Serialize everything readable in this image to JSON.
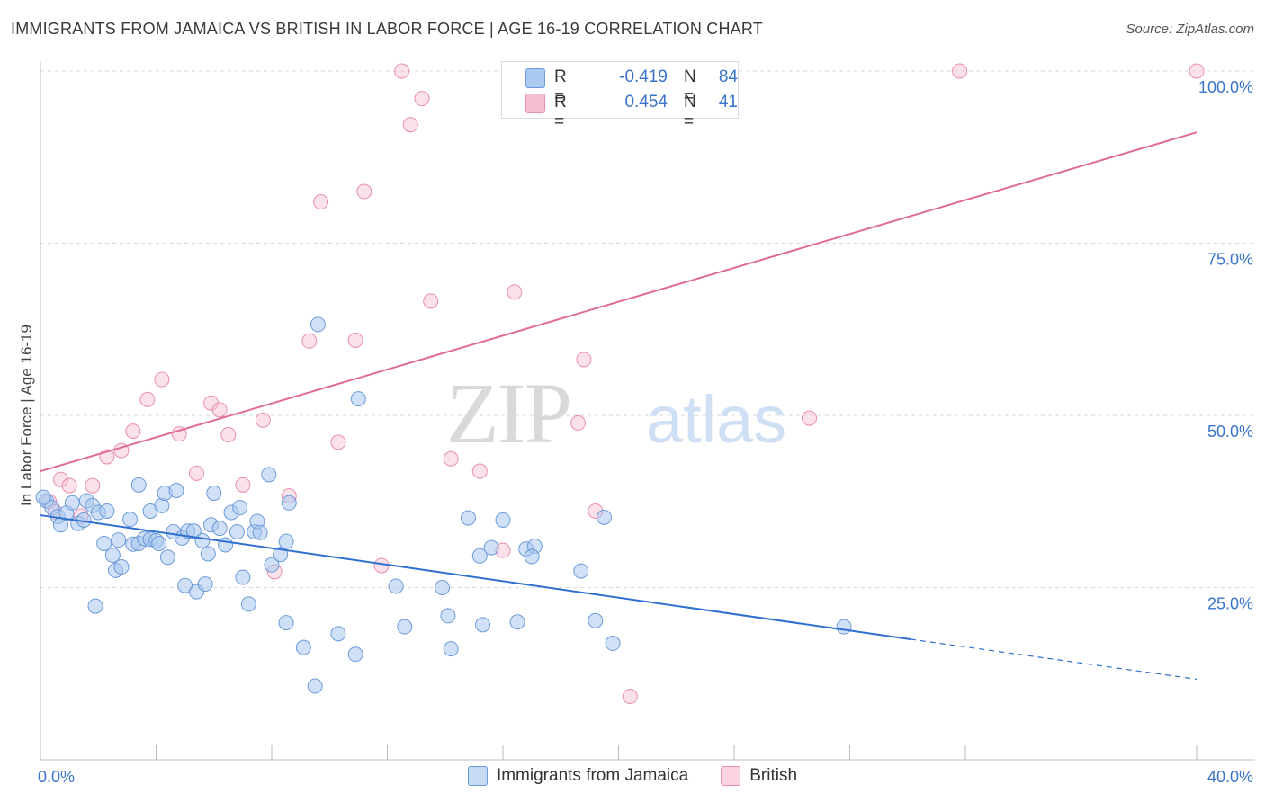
{
  "title": "IMMIGRANTS FROM JAMAICA VS BRITISH IN LABOR FORCE | AGE 16-19 CORRELATION CHART",
  "source": "Source: ZipAtlas.com",
  "watermark": {
    "zip": "ZIP",
    "atlas": "atlas"
  },
  "legend_stats": {
    "jamaica": {
      "r_label": "R =",
      "r_value": "-0.419",
      "n_label": "N =",
      "n_value": "84"
    },
    "british": {
      "r_label": "R =",
      "r_value": "0.454",
      "n_label": "N =",
      "n_value": "41"
    }
  },
  "legend_bottom": {
    "jamaica": "Immigrants from Jamaica",
    "british": "British"
  },
  "colors": {
    "jamaica_fill": "#a9c9f0",
    "jamaica_stroke": "#6c9ad8",
    "jamaica_line": "#2f6fd0",
    "british_fill": "#f6bfd0",
    "british_stroke": "#e98eab",
    "british_line": "#e06b93",
    "tick_label": "#3a74c9",
    "grid": "#d8d8d8"
  },
  "chart_data": {
    "type": "scatter",
    "title": "IMMIGRANTS FROM JAMAICA VS BRITISH IN LABOR FORCE | AGE 16-19 CORRELATION CHART",
    "xlabel": "",
    "ylabel": "In Labor Force | Age 16-19",
    "xlim": [
      0,
      40
    ],
    "ylim": [
      0,
      102
    ],
    "x_tick_labels": [
      "0.0%",
      "40.0%"
    ],
    "y_ticks": [
      25,
      50,
      75,
      100
    ],
    "y_tick_labels": [
      "25.0%",
      "50.0%",
      "75.0%",
      "100.0%"
    ],
    "grid": true,
    "series": [
      {
        "name": "Immigrants from Jamaica",
        "r": -0.419,
        "n": 84,
        "trend": {
          "x0": 0,
          "y0": 35.5,
          "x1": 30.1,
          "y1": 17.5,
          "dash_to_x": 40,
          "dash_to_y": 11.7
        },
        "points": [
          [
            0.2,
            37.6
          ],
          [
            0.4,
            36.6
          ],
          [
            0.6,
            35.3
          ],
          [
            0.7,
            34.1
          ],
          [
            0.9,
            35.8
          ],
          [
            1.1,
            37.3
          ],
          [
            1.3,
            34.3
          ],
          [
            1.5,
            34.8
          ],
          [
            1.6,
            37.6
          ],
          [
            1.8,
            36.9
          ],
          [
            1.9,
            22.3
          ],
          [
            2.0,
            35.9
          ],
          [
            2.3,
            36.1
          ],
          [
            2.2,
            31.4
          ],
          [
            2.5,
            29.7
          ],
          [
            2.6,
            27.5
          ],
          [
            2.7,
            31.9
          ],
          [
            2.8,
            28.0
          ],
          [
            3.1,
            34.9
          ],
          [
            3.2,
            31.3
          ],
          [
            3.4,
            31.4
          ],
          [
            3.4,
            39.9
          ],
          [
            3.6,
            32.1
          ],
          [
            3.8,
            32.0
          ],
          [
            3.8,
            36.1
          ],
          [
            4.0,
            31.8
          ],
          [
            4.1,
            31.4
          ],
          [
            4.2,
            36.9
          ],
          [
            4.3,
            38.7
          ],
          [
            4.4,
            29.4
          ],
          [
            4.6,
            33.1
          ],
          [
            4.7,
            39.1
          ],
          [
            4.9,
            32.2
          ],
          [
            5.0,
            25.3
          ],
          [
            5.1,
            33.2
          ],
          [
            5.3,
            33.2
          ],
          [
            5.4,
            24.4
          ],
          [
            5.6,
            31.8
          ],
          [
            5.7,
            25.5
          ],
          [
            5.8,
            29.9
          ],
          [
            5.9,
            34.1
          ],
          [
            6.0,
            38.7
          ],
          [
            6.2,
            33.6
          ],
          [
            6.4,
            31.2
          ],
          [
            6.6,
            35.9
          ],
          [
            6.8,
            33.1
          ],
          [
            6.9,
            36.6
          ],
          [
            7.0,
            26.5
          ],
          [
            7.2,
            22.6
          ],
          [
            7.4,
            33.1
          ],
          [
            7.5,
            34.6
          ],
          [
            7.6,
            33.0
          ],
          [
            7.9,
            41.4
          ],
          [
            8.0,
            28.3
          ],
          [
            8.3,
            29.8
          ],
          [
            8.5,
            31.7
          ],
          [
            8.6,
            37.3
          ],
          [
            8.5,
            19.9
          ],
          [
            9.1,
            16.3
          ],
          [
            9.5,
            10.7
          ],
          [
            9.6,
            63.2
          ],
          [
            10.3,
            18.3
          ],
          [
            10.9,
            15.3
          ],
          [
            11.0,
            52.4
          ],
          [
            12.3,
            25.2
          ],
          [
            12.6,
            19.3
          ],
          [
            13.9,
            25.0
          ],
          [
            14.2,
            16.1
          ],
          [
            14.1,
            20.9
          ],
          [
            14.8,
            35.1
          ],
          [
            15.2,
            29.6
          ],
          [
            15.3,
            19.6
          ],
          [
            15.6,
            30.8
          ],
          [
            16.0,
            34.8
          ],
          [
            16.5,
            20.0
          ],
          [
            16.8,
            30.6
          ],
          [
            17.1,
            31.0
          ],
          [
            17.0,
            29.5
          ],
          [
            18.7,
            27.4
          ],
          [
            19.2,
            20.2
          ],
          [
            19.5,
            35.2
          ],
          [
            19.8,
            16.9
          ],
          [
            27.8,
            19.3
          ],
          [
            0.1,
            38.1
          ]
        ]
      },
      {
        "name": "British",
        "r": 0.454,
        "n": 41,
        "trend": {
          "x0": 0,
          "y0": 41.9,
          "x1": 40,
          "y1": 91.1
        },
        "points": [
          [
            0.3,
            37.5
          ],
          [
            0.5,
            36.0
          ],
          [
            0.7,
            40.7
          ],
          [
            1.0,
            39.8
          ],
          [
            1.4,
            35.4
          ],
          [
            1.8,
            39.8
          ],
          [
            2.3,
            44.0
          ],
          [
            2.8,
            44.9
          ],
          [
            3.2,
            47.7
          ],
          [
            3.7,
            52.3
          ],
          [
            4.2,
            55.2
          ],
          [
            4.8,
            47.3
          ],
          [
            5.4,
            41.6
          ],
          [
            5.9,
            51.8
          ],
          [
            6.2,
            50.8
          ],
          [
            6.5,
            47.2
          ],
          [
            7.0,
            39.9
          ],
          [
            7.7,
            49.3
          ],
          [
            8.1,
            27.3
          ],
          [
            8.6,
            38.3
          ],
          [
            9.3,
            60.8
          ],
          [
            9.7,
            81.0
          ],
          [
            10.3,
            46.1
          ],
          [
            10.9,
            60.9
          ],
          [
            11.2,
            82.5
          ],
          [
            11.8,
            28.2
          ],
          [
            12.5,
            100.0
          ],
          [
            12.8,
            92.2
          ],
          [
            13.2,
            96.0
          ],
          [
            13.5,
            66.6
          ],
          [
            14.2,
            43.7
          ],
          [
            15.2,
            41.9
          ],
          [
            16.0,
            30.4
          ],
          [
            16.4,
            67.9
          ],
          [
            18.6,
            48.9
          ],
          [
            18.8,
            58.1
          ],
          [
            19.2,
            36.1
          ],
          [
            20.4,
            9.2
          ],
          [
            26.6,
            49.6
          ],
          [
            31.8,
            100.0
          ],
          [
            40.0,
            100.0
          ]
        ]
      }
    ]
  }
}
